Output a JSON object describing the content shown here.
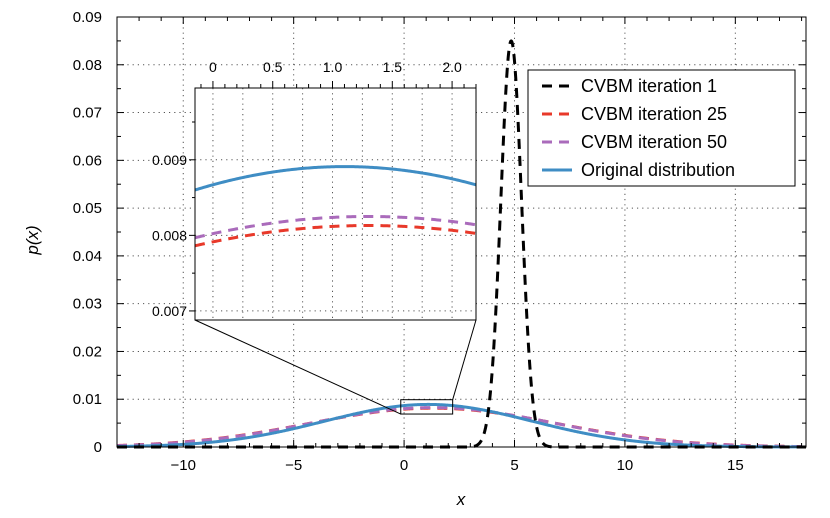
{
  "chart_data": {
    "type": "line",
    "xlabel": "x",
    "ylabel": "p(x)",
    "xlim": [
      -13,
      18.2
    ],
    "ylim": [
      0,
      0.09
    ],
    "xticks": [
      -10,
      -5,
      0,
      5,
      10,
      15
    ],
    "xtick_labels": [
      "−10",
      "−5",
      "0",
      "5",
      "10",
      "15"
    ],
    "yticks": [
      0,
      0.01,
      0.02,
      0.03,
      0.04,
      0.05,
      0.06,
      0.07,
      0.08,
      0.09
    ],
    "ytick_labels": [
      "0",
      "0.01",
      "0.02",
      "0.03",
      "0.04",
      "0.05",
      "0.06",
      "0.07",
      "0.08",
      "0.09"
    ],
    "grid": true,
    "legend_position": "top-right",
    "series": [
      {
        "name": "CVBM iteration 1",
        "color": "#000000",
        "style": "dashed",
        "distribution": "gaussian",
        "mean": 4.85,
        "std": 0.47,
        "peak": 0.085
      },
      {
        "name": "CVBM iteration 25",
        "color": "#e8392a",
        "style": "dashed",
        "distribution": "gaussian",
        "mean": 1.3,
        "std": 5.6,
        "peak": 0.00813
      },
      {
        "name": "CVBM iteration 50",
        "color": "#aa6bbb",
        "style": "dashed",
        "distribution": "gaussian",
        "mean": 1.3,
        "std": 5.5,
        "peak": 0.00825
      },
      {
        "name": "Original distribution",
        "color": "#3f8dc4",
        "style": "solid",
        "distribution": "gaussian",
        "mean": 1.1,
        "std": 4.7,
        "peak": 0.00891
      }
    ],
    "inset": {
      "xlim": [
        -0.15,
        2.2
      ],
      "ylim": [
        0.00688,
        0.00995
      ],
      "xticks": [
        0,
        0.5,
        1,
        1.5,
        2
      ],
      "xtick_labels": [
        "0",
        "0.5",
        "1.0",
        "1.5",
        "2.0"
      ],
      "yticks": [
        0.007,
        0.008,
        0.009
      ],
      "ytick_labels": [
        "0.007",
        "0.008",
        "0.009"
      ],
      "zoom_region": {
        "x": [
          -0.15,
          2.2
        ],
        "y": [
          0.0069,
          0.0099
        ]
      }
    }
  }
}
